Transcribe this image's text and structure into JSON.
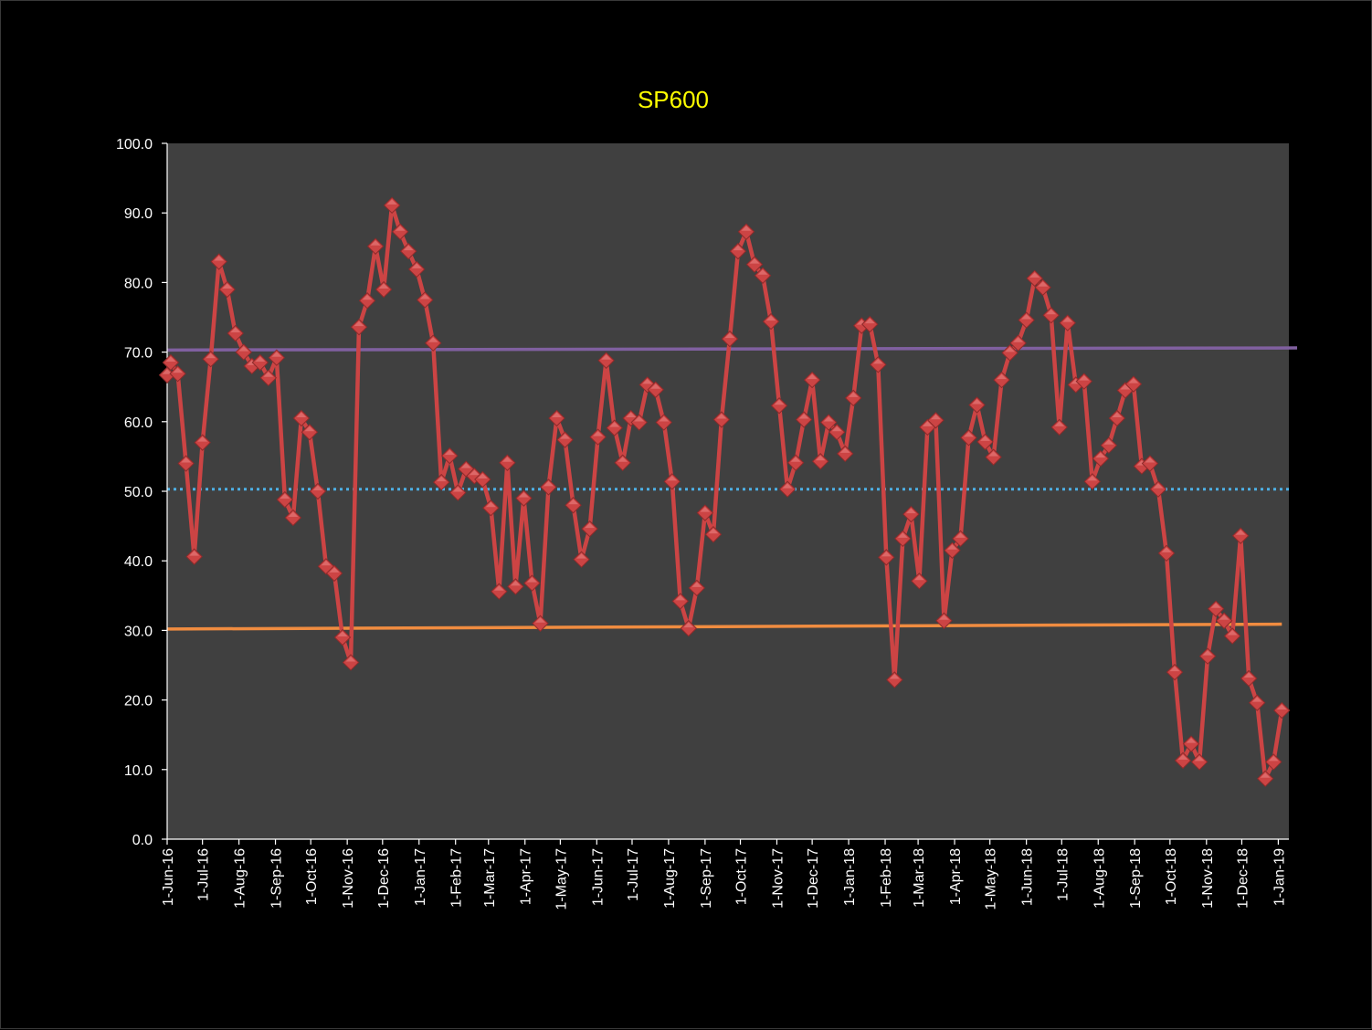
{
  "chart_data": {
    "type": "line",
    "title": "SP600",
    "xlabel": "",
    "ylabel": "",
    "ylim": [
      0,
      100
    ],
    "y_ticks": [
      "0.0",
      "10.0",
      "20.0",
      "30.0",
      "40.0",
      "50.0",
      "60.0",
      "70.0",
      "80.0",
      "90.0",
      "100.0"
    ],
    "x_range": [
      "2016-06-01",
      "2019-01-10"
    ],
    "x_ticks": [
      {
        "date": "2016-06-01",
        "label": "1-Jun-16"
      },
      {
        "date": "2016-07-01",
        "label": "1-Jul-16"
      },
      {
        "date": "2016-08-01",
        "label": "1-Aug-16"
      },
      {
        "date": "2016-09-01",
        "label": "1-Sep-16"
      },
      {
        "date": "2016-10-01",
        "label": "1-Oct-16"
      },
      {
        "date": "2016-11-01",
        "label": "1-Nov-16"
      },
      {
        "date": "2016-12-01",
        "label": "1-Dec-16"
      },
      {
        "date": "2017-01-01",
        "label": "1-Jan-17"
      },
      {
        "date": "2017-02-01",
        "label": "1-Feb-17"
      },
      {
        "date": "2017-03-01",
        "label": "1-Mar-17"
      },
      {
        "date": "2017-04-01",
        "label": "1-Apr-17"
      },
      {
        "date": "2017-05-01",
        "label": "1-May-17"
      },
      {
        "date": "2017-06-01",
        "label": "1-Jun-17"
      },
      {
        "date": "2017-07-01",
        "label": "1-Jul-17"
      },
      {
        "date": "2017-08-01",
        "label": "1-Aug-17"
      },
      {
        "date": "2017-09-01",
        "label": "1-Sep-17"
      },
      {
        "date": "2017-10-01",
        "label": "1-Oct-17"
      },
      {
        "date": "2017-11-01",
        "label": "1-Nov-17"
      },
      {
        "date": "2017-12-01",
        "label": "1-Dec-17"
      },
      {
        "date": "2018-01-01",
        "label": "1-Jan-18"
      },
      {
        "date": "2018-02-01",
        "label": "1-Feb-18"
      },
      {
        "date": "2018-03-01",
        "label": "1-Mar-18"
      },
      {
        "date": "2018-04-01",
        "label": "1-Apr-18"
      },
      {
        "date": "2018-05-01",
        "label": "1-May-18"
      },
      {
        "date": "2018-06-01",
        "label": "1-Jun-18"
      },
      {
        "date": "2018-07-01",
        "label": "1-Jul-18"
      },
      {
        "date": "2018-08-01",
        "label": "1-Aug-18"
      },
      {
        "date": "2018-09-01",
        "label": "1-Sep-18"
      },
      {
        "date": "2018-10-01",
        "label": "1-Oct-18"
      },
      {
        "date": "2018-11-01",
        "label": "1-Nov-18"
      },
      {
        "date": "2018-12-01",
        "label": "1-Dec-18"
      },
      {
        "date": "2019-01-01",
        "label": "1-Jan-19"
      }
    ],
    "grid": false,
    "legend": "none",
    "series": [
      {
        "marker": "diamond",
        "color": "#cc4444",
        "points": [
          [
            "2016-06-01",
            66.7
          ],
          [
            "2016-06-04",
            68.5
          ],
          [
            "2016-06-10",
            66.9
          ],
          [
            "2016-06-17",
            54.0
          ],
          [
            "2016-06-24",
            40.6
          ],
          [
            "2016-07-01",
            57.0
          ],
          [
            "2016-07-08",
            69.0
          ],
          [
            "2016-07-15",
            83.0
          ],
          [
            "2016-07-22",
            79.0
          ],
          [
            "2016-07-29",
            72.7
          ],
          [
            "2016-08-05",
            70.0
          ],
          [
            "2016-08-12",
            68.0
          ],
          [
            "2016-08-19",
            68.5
          ],
          [
            "2016-08-26",
            66.3
          ],
          [
            "2016-09-02",
            69.2
          ],
          [
            "2016-09-09",
            48.8
          ],
          [
            "2016-09-16",
            46.2
          ],
          [
            "2016-09-23",
            60.5
          ],
          [
            "2016-09-30",
            58.5
          ],
          [
            "2016-10-07",
            50.0
          ],
          [
            "2016-10-14",
            39.2
          ],
          [
            "2016-10-21",
            38.2
          ],
          [
            "2016-10-28",
            29.0
          ],
          [
            "2016-11-04",
            25.4
          ],
          [
            "2016-11-11",
            73.6
          ],
          [
            "2016-11-18",
            77.4
          ],
          [
            "2016-11-25",
            85.2
          ],
          [
            "2016-12-02",
            79.0
          ],
          [
            "2016-12-09",
            91.1
          ],
          [
            "2016-12-16",
            87.3
          ],
          [
            "2016-12-23",
            84.5
          ],
          [
            "2016-12-30",
            81.9
          ],
          [
            "2017-01-06",
            77.5
          ],
          [
            "2017-01-13",
            71.3
          ],
          [
            "2017-01-20",
            51.3
          ],
          [
            "2017-01-27",
            55.1
          ],
          [
            "2017-02-03",
            49.8
          ],
          [
            "2017-02-10",
            53.2
          ],
          [
            "2017-02-17",
            52.2
          ],
          [
            "2017-02-24",
            51.7
          ],
          [
            "2017-03-03",
            47.6
          ],
          [
            "2017-03-10",
            35.6
          ],
          [
            "2017-03-17",
            54.1
          ],
          [
            "2017-03-24",
            36.3
          ],
          [
            "2017-03-31",
            49.0
          ],
          [
            "2017-04-07",
            36.8
          ],
          [
            "2017-04-14",
            31.0
          ],
          [
            "2017-04-21",
            50.6
          ],
          [
            "2017-04-28",
            60.5
          ],
          [
            "2017-05-05",
            57.4
          ],
          [
            "2017-05-12",
            48.0
          ],
          [
            "2017-05-19",
            40.2
          ],
          [
            "2017-05-26",
            44.6
          ],
          [
            "2017-06-02",
            57.8
          ],
          [
            "2017-06-09",
            68.8
          ],
          [
            "2017-06-16",
            59.1
          ],
          [
            "2017-06-23",
            54.1
          ],
          [
            "2017-06-30",
            60.5
          ],
          [
            "2017-07-07",
            59.9
          ],
          [
            "2017-07-14",
            65.3
          ],
          [
            "2017-07-21",
            64.6
          ],
          [
            "2017-07-28",
            59.9
          ],
          [
            "2017-08-04",
            51.4
          ],
          [
            "2017-08-11",
            34.2
          ],
          [
            "2017-08-18",
            30.3
          ],
          [
            "2017-08-25",
            36.1
          ],
          [
            "2017-09-01",
            46.9
          ],
          [
            "2017-09-08",
            43.8
          ],
          [
            "2017-09-15",
            60.3
          ],
          [
            "2017-09-22",
            71.9
          ],
          [
            "2017-09-29",
            84.5
          ],
          [
            "2017-10-06",
            87.3
          ],
          [
            "2017-10-13",
            82.6
          ],
          [
            "2017-10-20",
            81.0
          ],
          [
            "2017-10-27",
            74.4
          ],
          [
            "2017-11-03",
            62.3
          ],
          [
            "2017-11-10",
            50.3
          ],
          [
            "2017-11-17",
            54.1
          ],
          [
            "2017-11-24",
            60.3
          ],
          [
            "2017-12-01",
            66.0
          ],
          [
            "2017-12-08",
            54.3
          ],
          [
            "2017-12-15",
            59.9
          ],
          [
            "2017-12-22",
            58.5
          ],
          [
            "2017-12-29",
            55.4
          ],
          [
            "2018-01-05",
            63.4
          ],
          [
            "2018-01-12",
            73.8
          ],
          [
            "2018-01-19",
            74.0
          ],
          [
            "2018-01-26",
            68.2
          ],
          [
            "2018-02-02",
            40.5
          ],
          [
            "2018-02-09",
            22.9
          ],
          [
            "2018-02-16",
            43.2
          ],
          [
            "2018-02-23",
            46.7
          ],
          [
            "2018-03-02",
            37.1
          ],
          [
            "2018-03-09",
            59.2
          ],
          [
            "2018-03-16",
            60.2
          ],
          [
            "2018-03-23",
            31.4
          ],
          [
            "2018-03-30",
            41.5
          ],
          [
            "2018-04-06",
            43.2
          ],
          [
            "2018-04-13",
            57.7
          ],
          [
            "2018-04-20",
            62.4
          ],
          [
            "2018-04-27",
            57.1
          ],
          [
            "2018-05-04",
            54.9
          ],
          [
            "2018-05-11",
            66.0
          ],
          [
            "2018-05-18",
            69.9
          ],
          [
            "2018-05-25",
            71.3
          ],
          [
            "2018-06-01",
            74.6
          ],
          [
            "2018-06-08",
            80.6
          ],
          [
            "2018-06-15",
            79.3
          ],
          [
            "2018-06-22",
            75.3
          ],
          [
            "2018-06-29",
            59.2
          ],
          [
            "2018-07-06",
            74.2
          ],
          [
            "2018-07-13",
            65.3
          ],
          [
            "2018-07-20",
            65.8
          ],
          [
            "2018-07-27",
            51.4
          ],
          [
            "2018-08-03",
            54.7
          ],
          [
            "2018-08-10",
            56.6
          ],
          [
            "2018-08-17",
            60.5
          ],
          [
            "2018-08-24",
            64.5
          ],
          [
            "2018-08-31",
            65.4
          ],
          [
            "2018-09-07",
            53.6
          ],
          [
            "2018-09-14",
            54.0
          ],
          [
            "2018-09-21",
            50.3
          ],
          [
            "2018-09-28",
            41.1
          ],
          [
            "2018-10-05",
            24.0
          ],
          [
            "2018-10-12",
            11.3
          ],
          [
            "2018-10-19",
            13.7
          ],
          [
            "2018-10-26",
            11.1
          ],
          [
            "2018-11-02",
            26.3
          ],
          [
            "2018-11-09",
            33.1
          ],
          [
            "2018-11-16",
            31.4
          ],
          [
            "2018-11-23",
            29.2
          ],
          [
            "2018-11-30",
            43.6
          ],
          [
            "2018-12-07",
            23.1
          ],
          [
            "2018-12-14",
            19.6
          ],
          [
            "2018-12-21",
            8.7
          ],
          [
            "2018-12-28",
            11.1
          ],
          [
            "2019-01-04",
            18.5
          ]
        ]
      }
    ],
    "reference_lines": [
      {
        "kind": "solid",
        "color": "#8060a0",
        "start": [
          "2016-06-01",
          70.3
        ],
        "end": [
          "2019-01-17",
          70.6
        ]
      },
      {
        "kind": "dotted",
        "color": "#4db0e6",
        "start": [
          "2016-06-01",
          50.3
        ],
        "end": [
          "2019-01-10",
          50.3
        ]
      },
      {
        "kind": "solid",
        "color": "#f08c40",
        "start": [
          "2016-06-01",
          30.2
        ],
        "end": [
          "2019-01-04",
          30.9
        ]
      }
    ]
  },
  "colors": {
    "page_background": "#000000",
    "plot_background": "#404040",
    "axis": "#ffffff",
    "tick_label": "#ffffff",
    "title": "#ffff00"
  }
}
